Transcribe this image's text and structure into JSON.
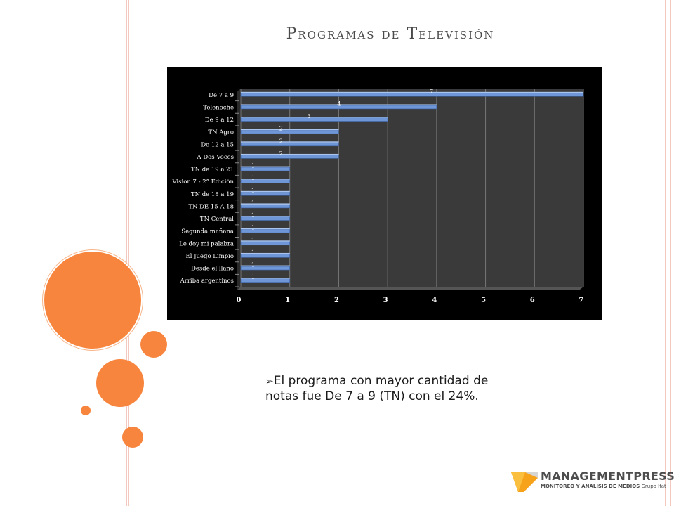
{
  "slide": {
    "title": "Programas de Televisión",
    "bullet": "El programa con mayor cantidad de notas fue De 7 a 9 (TN) con el 24%."
  },
  "logo": {
    "name": "MANAGEMENTPRESS",
    "tagline": "MONITOREO Y ANALISIS DE MEDIOS",
    "group": "Grupo Ifat"
  },
  "colors": {
    "accent": "#f7853e",
    "bar": "#6f97d8",
    "chart_bg": "#000000",
    "plot_bg": "#3a3a3a"
  },
  "chart_data": {
    "type": "bar",
    "orientation": "horizontal",
    "categories": [
      "De 7 a 9",
      "Telenoche",
      "De 9 a 12",
      "TN Agro",
      "De 12 a 15",
      "A Dos Voces",
      "TN de 19 a 21",
      "Vision 7 - 2° Edición",
      "TN de 18 a 19",
      "TN DE 15 A 18",
      "TN Central",
      "Segunda mañana",
      "Le doy mi palabra",
      "El Juego Limpio",
      "Desde el llano",
      "Arriba argentinos"
    ],
    "values": [
      7,
      4,
      3,
      2,
      2,
      2,
      1,
      1,
      1,
      1,
      1,
      1,
      1,
      1,
      1,
      1
    ],
    "xlim": [
      0,
      7
    ],
    "xticks": [
      "0",
      "1",
      "2",
      "3",
      "4",
      "5",
      "6",
      "7"
    ],
    "grid": true,
    "data_labels": true
  }
}
